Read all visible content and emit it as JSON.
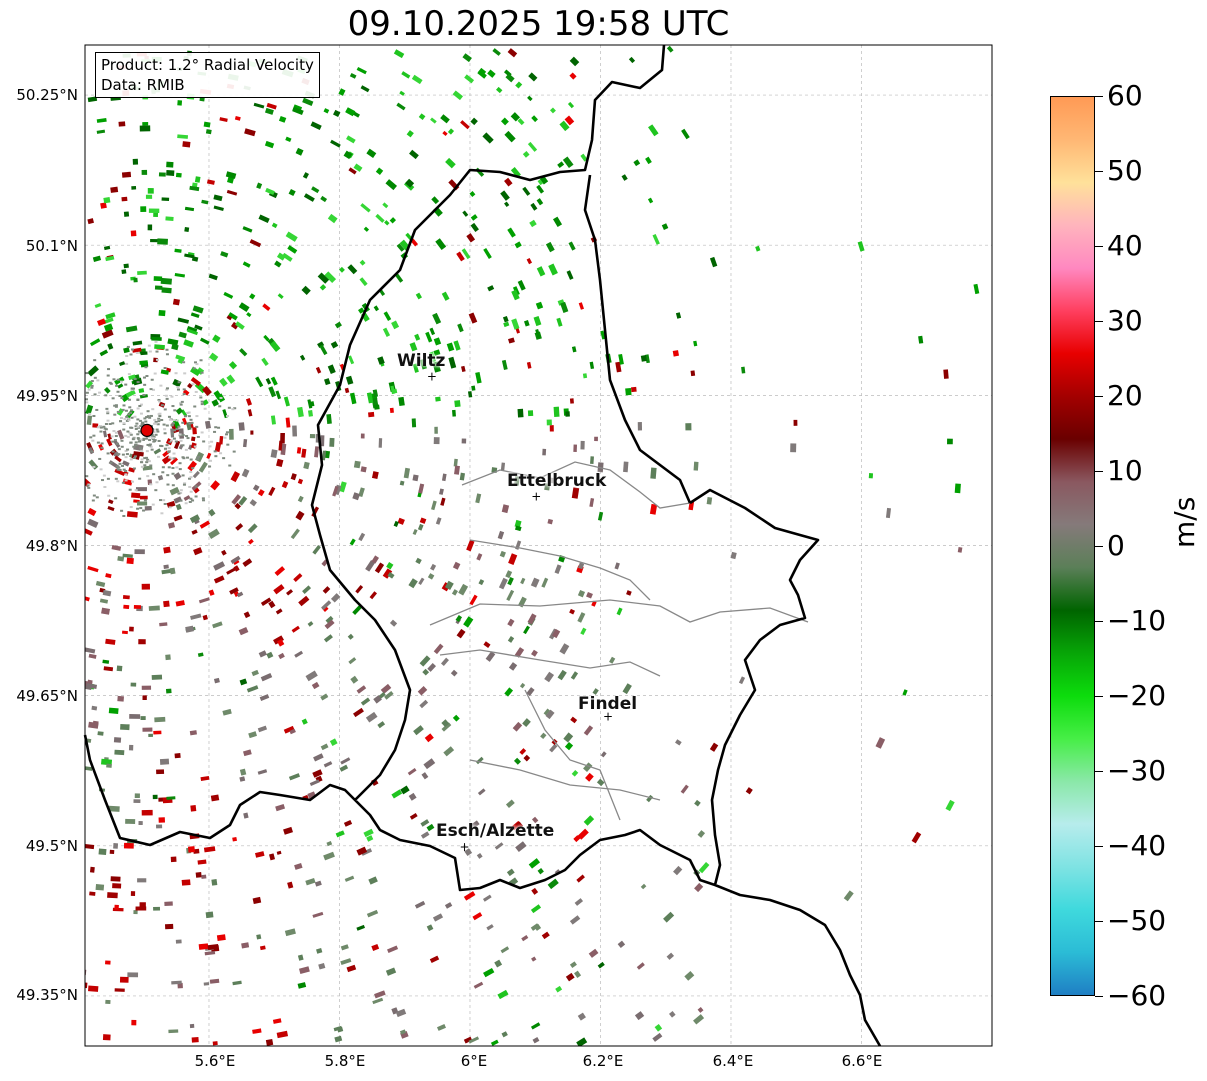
{
  "title": "09.10.2025 19:58 UTC",
  "info": {
    "product": "Product: 1.2° Radial Velocity",
    "source": "Data: RMIB"
  },
  "lat_labels": [
    "50.25°N",
    "50.1°N",
    "49.95°N",
    "49.8°N",
    "49.65°N",
    "49.5°N",
    "49.35°N"
  ],
  "lon_labels": [
    "5.6°E",
    "5.8°E",
    "6°E",
    "6.2°E",
    "6.4°E",
    "6.6°E"
  ],
  "cities": [
    {
      "name": "Wiltz",
      "lon": 5.94,
      "lat": 49.97
    },
    {
      "name": "Ettelbruck",
      "lon": 6.1,
      "lat": 49.85
    },
    {
      "name": "Findel",
      "lon": 6.21,
      "lat": 49.63
    },
    {
      "name": "Esch/Alzette",
      "lon": 5.99,
      "lat": 49.5
    }
  ],
  "radar_site": {
    "lon": 5.505,
    "lat": 49.915,
    "color": "#e00000"
  },
  "map_extent": {
    "lon": [
      5.41,
      6.8
    ],
    "lat": [
      49.3,
      50.3
    ]
  },
  "colorbar": {
    "label": "m/s",
    "ticks": [
      "60",
      "50",
      "40",
      "30",
      "20",
      "10",
      "0",
      "−10",
      "−20",
      "−30",
      "−40",
      "−50",
      "−60"
    ],
    "min": -60,
    "max": 60,
    "colors": [
      "#1f7fc4",
      "#2bbcd6",
      "#3fd9dd",
      "#7fe3e3",
      "#b7ecec",
      "#8ae8a8",
      "#46ee46",
      "#0cdc0c",
      "#07a507",
      "#006400",
      "#5b7f58",
      "#857a7a",
      "#8a5860",
      "#6a0000",
      "#a30000",
      "#e80000",
      "#ff3f5f",
      "#ff88c0",
      "#ffb4bd",
      "#ffe19a",
      "#ffb774",
      "#ff9a55"
    ]
  }
}
